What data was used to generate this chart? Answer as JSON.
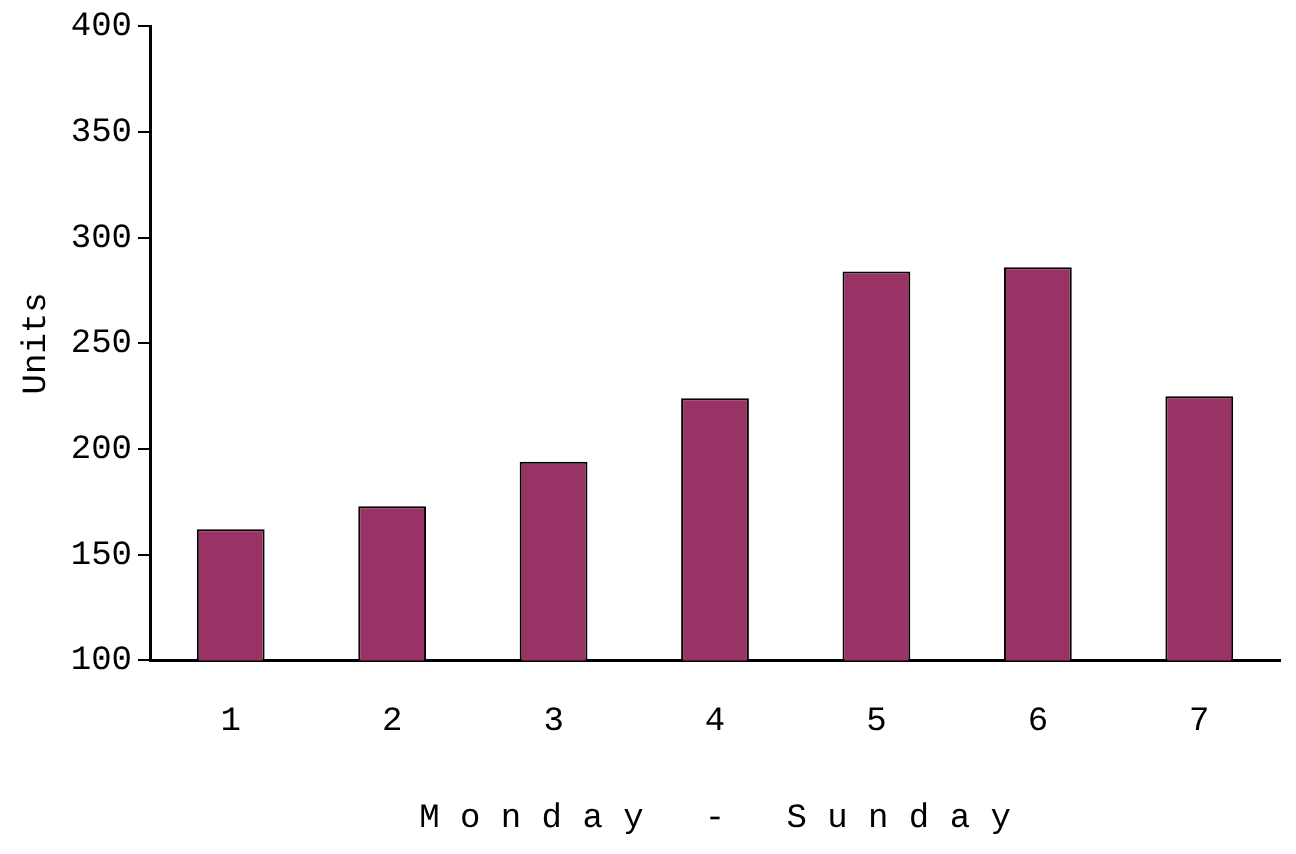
{
  "chart_data": {
    "type": "bar",
    "xlabel": "M o n d a y   -   S u n d a y",
    "ylabel": "Units",
    "categories": [
      "1",
      "2",
      "3",
      "4",
      "5",
      "6",
      "7"
    ],
    "values": [
      162,
      173,
      194,
      224,
      284,
      286,
      225
    ],
    "color": "#993366",
    "ylim": [
      100,
      400
    ],
    "yticks": [
      100,
      150,
      200,
      250,
      300,
      350,
      400
    ],
    "grid": false
  }
}
